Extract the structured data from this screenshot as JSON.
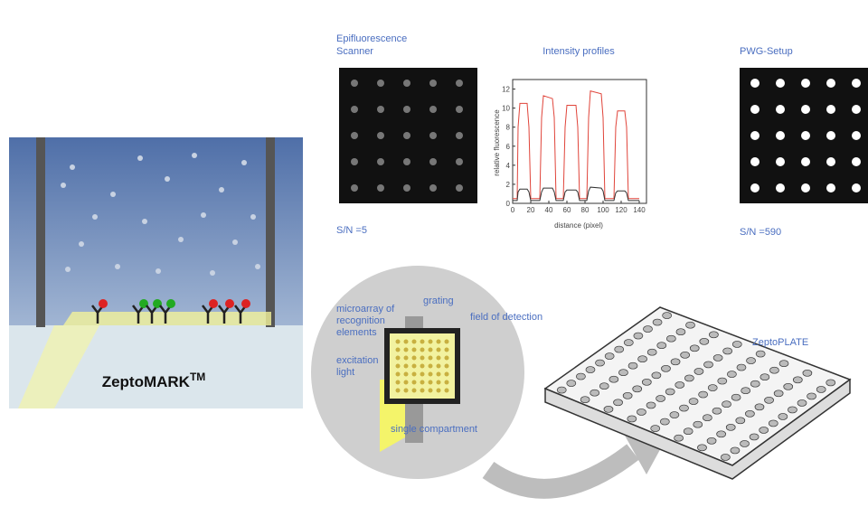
{
  "left_panel": {
    "label": "ZeptoMARK",
    "superscript": "TM"
  },
  "scanner": {
    "title_lines": [
      "Epifluorescence",
      "Scanner"
    ],
    "caption": "S/N =5"
  },
  "pwg": {
    "title": "PWG-Setup",
    "caption": "S/N =590"
  },
  "chart_data": {
    "type": "line",
    "title": "Intensity profiles",
    "x_label": "distance (pixel)",
    "y_label": "relative fluorescence",
    "x": [
      0,
      5,
      6,
      8,
      16,
      18,
      20,
      30,
      32,
      34,
      44,
      46,
      48,
      56,
      58,
      60,
      70,
      72,
      74,
      82,
      84,
      86,
      98,
      100,
      102,
      112,
      114,
      116,
      124,
      126,
      128,
      140
    ],
    "series": [
      {
        "color": "#e0443a",
        "values": [
          0.5,
          0.5,
          8,
          10.5,
          10.5,
          8,
          0.5,
          0.5,
          9,
          11.3,
          11,
          9,
          0.5,
          0.5,
          8,
          10.3,
          10.3,
          8,
          0.5,
          0.5,
          9,
          11.8,
          11.5,
          9,
          0.5,
          0.5,
          8,
          9.7,
          9.7,
          8,
          0.5,
          0.5
        ]
      },
      {
        "color": "#333333",
        "values": [
          0.3,
          0.3,
          1.2,
          1.5,
          1.5,
          1.2,
          0.3,
          0.3,
          1.2,
          1.6,
          1.6,
          1.2,
          0.3,
          0.3,
          1.2,
          1.4,
          1.4,
          1.2,
          0.3,
          0.3,
          1.3,
          1.7,
          1.6,
          1.3,
          0.3,
          0.3,
          1.1,
          1.3,
          1.3,
          1.1,
          0.3,
          0.3
        ]
      }
    ],
    "xlim": [
      0,
      148
    ],
    "ylim": [
      0,
      13
    ],
    "xticks": [
      0,
      20,
      40,
      60,
      80,
      100,
      120,
      140
    ],
    "yticks": [
      0,
      2,
      4,
      6,
      8,
      10,
      12
    ]
  },
  "chip": {
    "labels": [
      "microarray of",
      "recognition",
      "elements",
      "grating",
      "field of detection",
      "excitation",
      "light",
      "single compartment"
    ]
  },
  "plate": {
    "label": "ZeptoPLATE"
  }
}
